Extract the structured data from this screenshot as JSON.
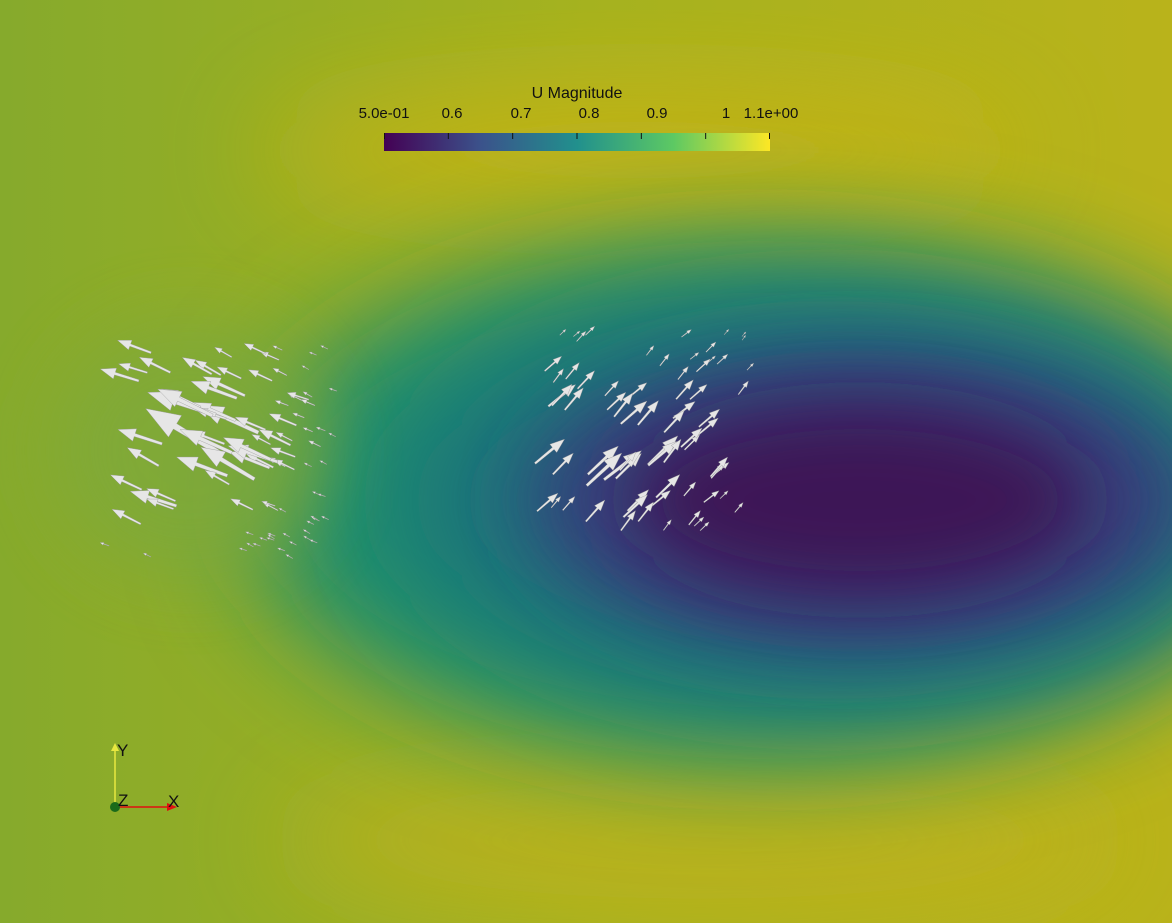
{
  "scalar_bar": {
    "title": "U Magnitude",
    "ticks": [
      "5.0e-01",
      "0.6",
      "0.7",
      "0.8",
      "0.9",
      "1",
      "1.1e+00"
    ],
    "tick_values": [
      0.5,
      0.6,
      0.7,
      0.8,
      0.9,
      1.0,
      1.1
    ],
    "range": [
      0.5,
      1.1
    ],
    "colormap": [
      "#440154",
      "#3b528b",
      "#21908d",
      "#5dc963",
      "#fde725"
    ]
  },
  "orientation_axes": {
    "x_label": "X",
    "y_label": "Y",
    "z_label": "Z",
    "x_color": "#e01010",
    "y_color": "#e8e840",
    "z_color": "#1a6a1a"
  },
  "glyph_color": "#e6e6e6"
}
